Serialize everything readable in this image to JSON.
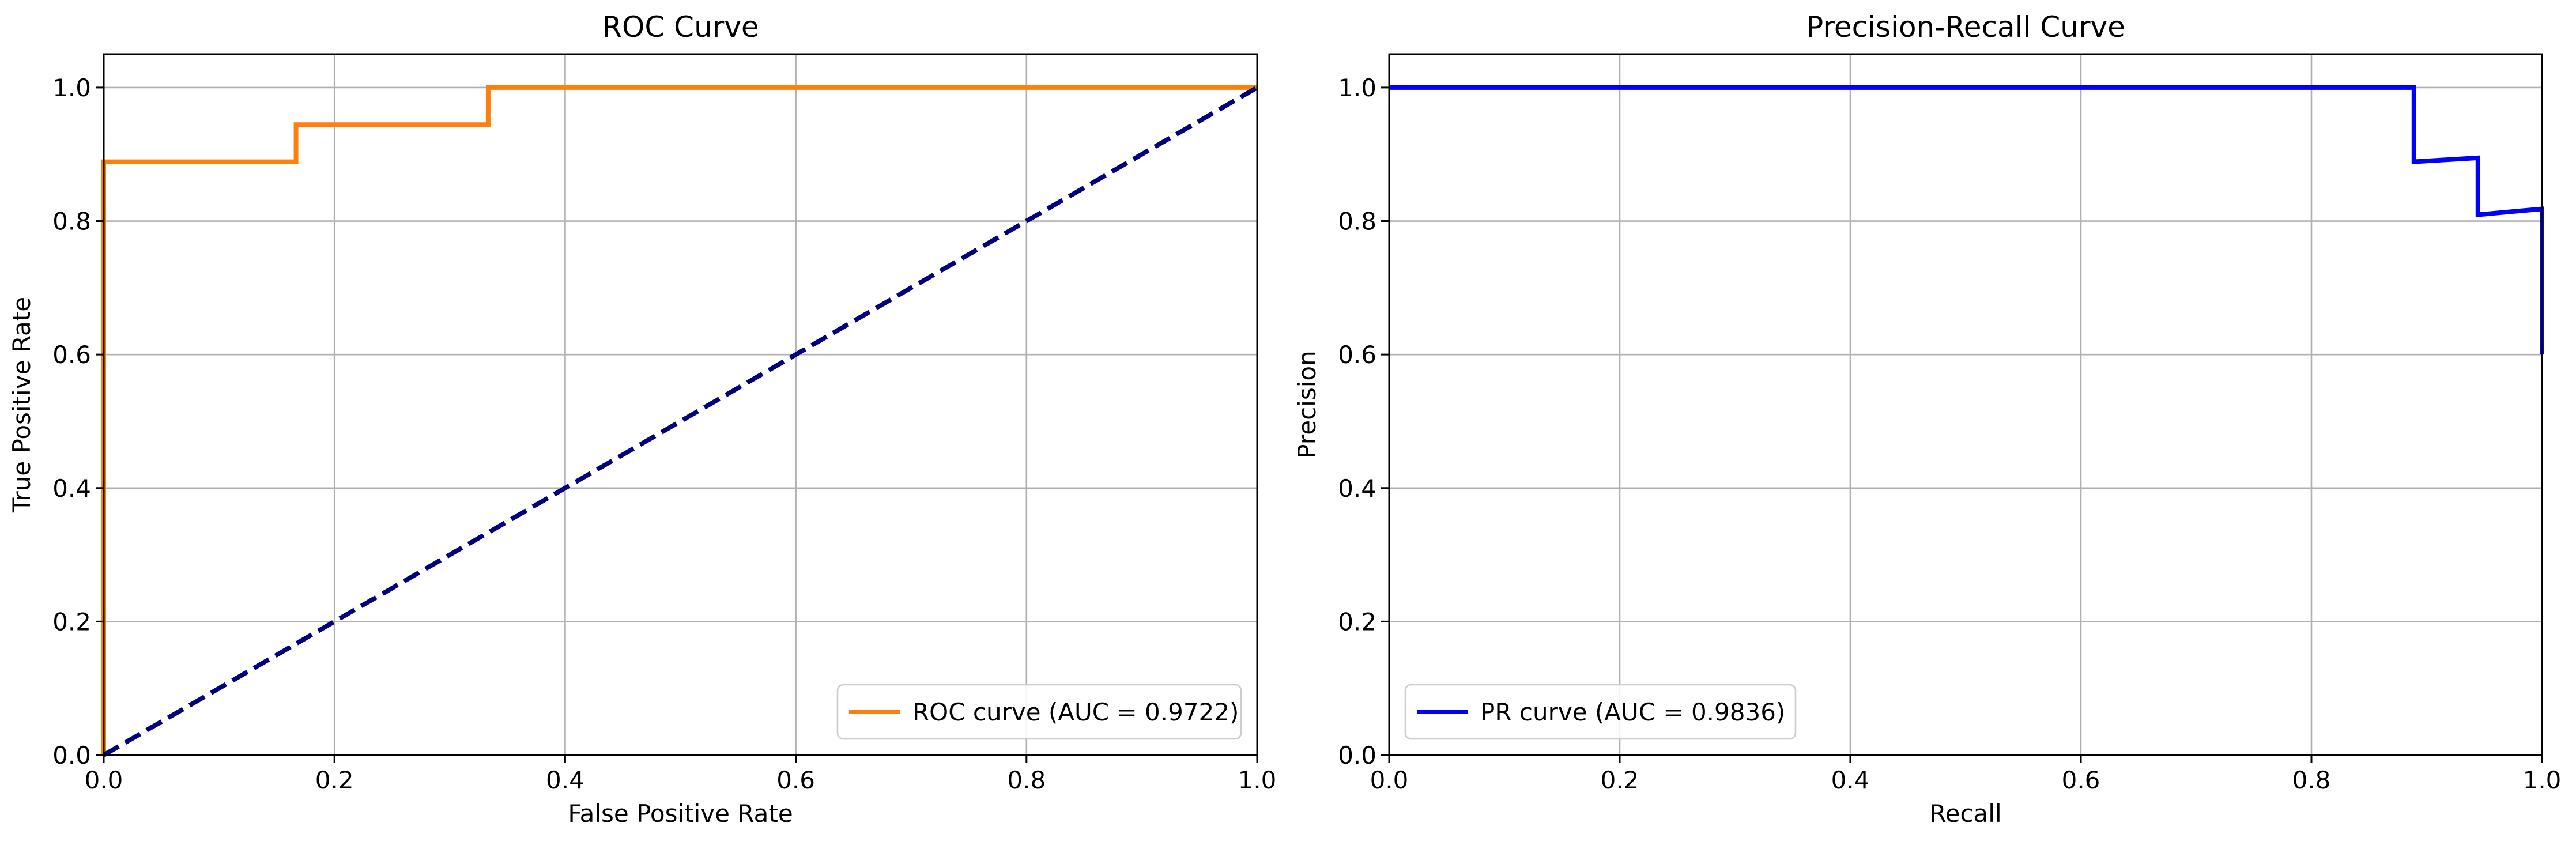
{
  "chart_data": [
    {
      "type": "line",
      "title": "ROC Curve",
      "xlabel": "False Positive Rate",
      "ylabel": "True Positive Rate",
      "xlim": [
        0.0,
        1.0
      ],
      "ylim": [
        0.0,
        1.05
      ],
      "grid": true,
      "legend_position": "lower right",
      "xticks": [
        "0.0",
        "0.2",
        "0.4",
        "0.6",
        "0.8",
        "1.0"
      ],
      "yticks": [
        "0.0",
        "0.2",
        "0.4",
        "0.6",
        "0.8",
        "1.0"
      ],
      "series": [
        {
          "name": "ROC curve (AUC = 0.9722)",
          "color": "#ff7f0e",
          "style": "solid",
          "x": [
            0.0,
            0.0,
            0.0,
            0.1667,
            0.1667,
            0.3333,
            0.3333,
            1.0
          ],
          "y": [
            0.0,
            0.0556,
            0.8889,
            0.8889,
            0.9444,
            0.9444,
            1.0,
            1.0
          ]
        },
        {
          "color": "#000080",
          "style": "dashed",
          "x": [
            0.0,
            1.0
          ],
          "y": [
            0.0,
            1.0
          ]
        }
      ]
    },
    {
      "type": "line",
      "title": "Precision-Recall Curve",
      "xlabel": "Recall",
      "ylabel": "Precision",
      "xlim": [
        0.0,
        1.0
      ],
      "ylim": [
        0.0,
        1.05
      ],
      "grid": true,
      "legend_position": "lower left",
      "xticks": [
        "0.0",
        "0.2",
        "0.4",
        "0.6",
        "0.8",
        "1.0"
      ],
      "yticks": [
        "0.0",
        "0.2",
        "0.4",
        "0.6",
        "0.8",
        "1.0"
      ],
      "series": [
        {
          "name": "PR curve (AUC = 0.9836)",
          "color": "#0000ff",
          "style": "solid",
          "x": [
            0.0,
            0.8889,
            0.8889,
            0.9444,
            0.9444,
            1.0,
            1.0
          ],
          "y": [
            1.0,
            1.0,
            0.8889,
            0.8947,
            0.8095,
            0.8182,
            0.6
          ]
        }
      ]
    }
  ]
}
